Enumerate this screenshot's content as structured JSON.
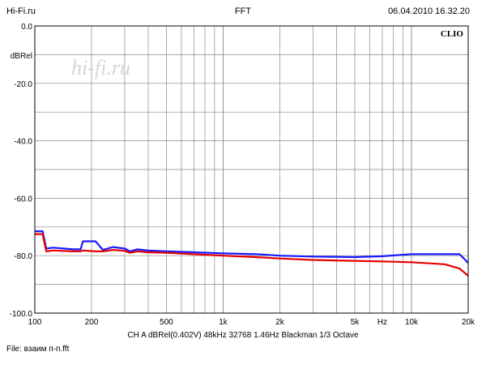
{
  "header": {
    "left": "Hi-Fi.ru",
    "center": "FFT",
    "right": "06.04.2010 16.32.20"
  },
  "brand": "CLIO",
  "watermark": "hi-fi.ru",
  "footer": {
    "params": "CH A   dBRel(0.402V)   48kHz   32768   1.46Hz   Blackman   1/3 Octave",
    "file": "File: взаим п-п.fft"
  },
  "chart_data": {
    "type": "line",
    "title": "FFT",
    "ylabel": "dBRel",
    "y_scale": "linear",
    "x_scale": "log",
    "xlim": [
      100,
      20000
    ],
    "ylim": [
      -100,
      0
    ],
    "grid": true,
    "y_ticks": [
      {
        "value": 0,
        "label": "0.0"
      },
      {
        "value": -20,
        "label": "-20.0"
      },
      {
        "value": -40,
        "label": "-40.0"
      },
      {
        "value": -60,
        "label": "-60.0"
      },
      {
        "value": -80,
        "label": "-80.0"
      },
      {
        "value": -100,
        "label": "-100.0"
      }
    ],
    "x_ticks": [
      {
        "value": 100,
        "label": "100"
      },
      {
        "value": 200,
        "label": "200"
      },
      {
        "value": 500,
        "label": "500"
      },
      {
        "value": 1000,
        "label": "1k"
      },
      {
        "value": 2000,
        "label": "2k"
      },
      {
        "value": 5000,
        "label": "5k"
      },
      {
        "value": 7000,
        "label": "Hz"
      },
      {
        "value": 10000,
        "label": "10k"
      },
      {
        "value": 20000,
        "label": "20k"
      }
    ],
    "series": [
      {
        "color": "#1a1aff",
        "x": [
          100,
          110,
          115,
          125,
          160,
          175,
          180,
          210,
          230,
          260,
          300,
          320,
          350,
          400,
          500,
          700,
          1000,
          1500,
          2000,
          3000,
          5000,
          7000,
          10000,
          15000,
          18000,
          20000
        ],
        "y": [
          -71.5,
          -71.5,
          -77.5,
          -77.2,
          -77.8,
          -77.8,
          -75,
          -75,
          -78,
          -77,
          -77.5,
          -78.5,
          -77.8,
          -78.2,
          -78.5,
          -78.8,
          -79.2,
          -79.5,
          -80,
          -80.3,
          -80.5,
          -80.2,
          -79.5,
          -79.5,
          -79.5,
          -82.5
        ]
      },
      {
        "color": "#e60000",
        "x": [
          100,
          110,
          115,
          125,
          160,
          175,
          180,
          210,
          230,
          260,
          300,
          320,
          350,
          400,
          500,
          700,
          1000,
          1500,
          2000,
          3000,
          5000,
          7000,
          10000,
          15000,
          18000,
          20000
        ],
        "y": [
          -72.5,
          -72.5,
          -78.5,
          -78.2,
          -78.5,
          -78.5,
          -78.2,
          -78.5,
          -78.5,
          -78,
          -78.3,
          -79,
          -78.5,
          -78.8,
          -79,
          -79.5,
          -80,
          -80.5,
          -81,
          -81.5,
          -81.8,
          -82,
          -82.3,
          -83,
          -84.5,
          -87
        ]
      }
    ]
  }
}
